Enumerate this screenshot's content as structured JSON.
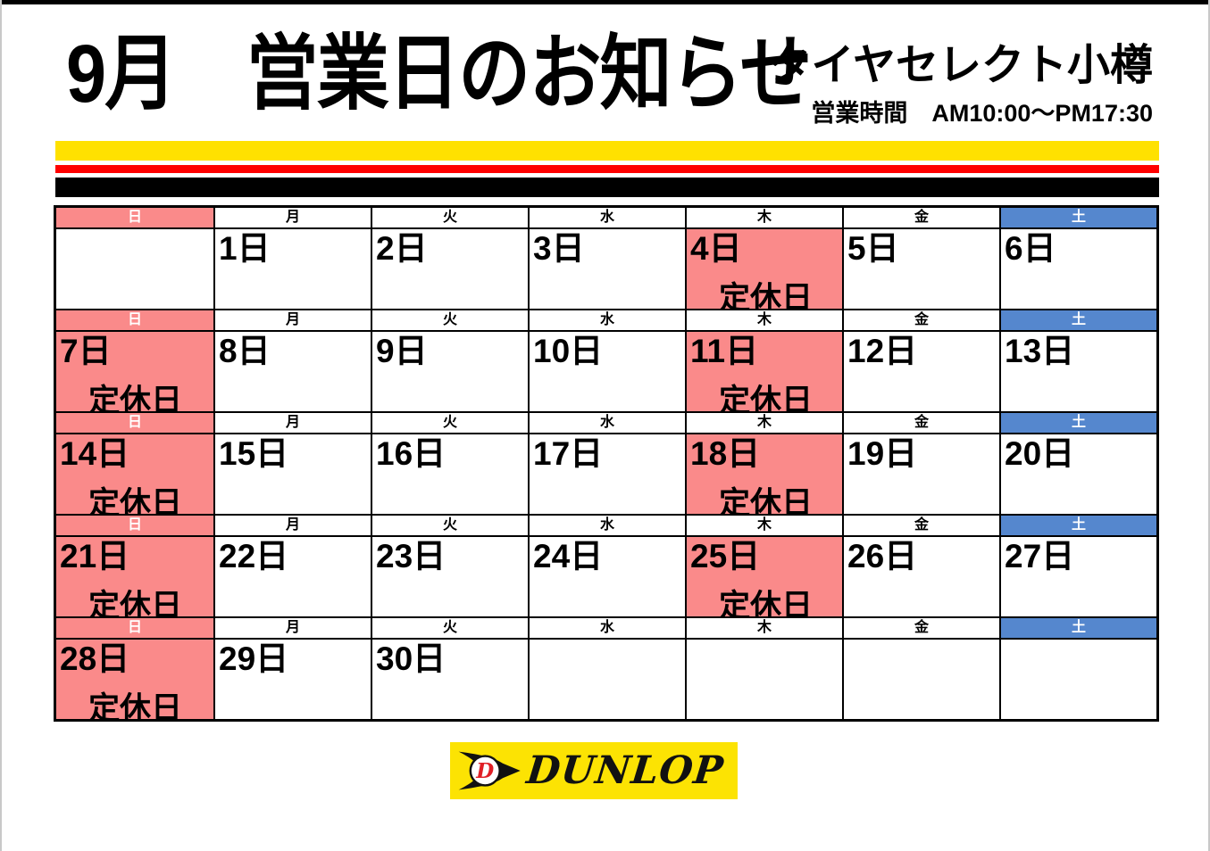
{
  "header": {
    "title": "9月　営業日のお知らせ",
    "shop_name": "タイヤセレクト小樽",
    "hours": "営業時間　AM10:00～PM17:30"
  },
  "stripes": {
    "yellow": "#FFE100",
    "red": "#FF0000",
    "black": "#000000"
  },
  "calendar": {
    "month": "9月",
    "closed_label": "定休日",
    "closed_bg": "#FA8A8A",
    "weekday_headers": [
      {
        "key": "sun",
        "label": "日",
        "bg": "#FA8A8A",
        "color": "#FFFFFF"
      },
      {
        "key": "mon",
        "label": "月",
        "bg": "#FFFFFF",
        "color": "#000000"
      },
      {
        "key": "tue",
        "label": "火",
        "bg": "#FFFFFF",
        "color": "#000000"
      },
      {
        "key": "wed",
        "label": "水",
        "bg": "#FFFFFF",
        "color": "#000000"
      },
      {
        "key": "thu",
        "label": "木",
        "bg": "#FFFFFF",
        "color": "#000000"
      },
      {
        "key": "fri",
        "label": "金",
        "bg": "#FFFFFF",
        "color": "#000000"
      },
      {
        "key": "sat",
        "label": "土",
        "bg": "#5587CE",
        "color": "#FFFFFF"
      }
    ],
    "weeks": [
      {
        "days": [
          {
            "date": "",
            "closed": false
          },
          {
            "date": "1日",
            "closed": false
          },
          {
            "date": "2日",
            "closed": false
          },
          {
            "date": "3日",
            "closed": false
          },
          {
            "date": "4日",
            "closed": true
          },
          {
            "date": "5日",
            "closed": false
          },
          {
            "date": "6日",
            "closed": false
          }
        ]
      },
      {
        "days": [
          {
            "date": "7日",
            "closed": true
          },
          {
            "date": "8日",
            "closed": false
          },
          {
            "date": "9日",
            "closed": false
          },
          {
            "date": "10日",
            "closed": false
          },
          {
            "date": "11日",
            "closed": true
          },
          {
            "date": "12日",
            "closed": false
          },
          {
            "date": "13日",
            "closed": false
          }
        ]
      },
      {
        "days": [
          {
            "date": "14日",
            "closed": true
          },
          {
            "date": "15日",
            "closed": false
          },
          {
            "date": "16日",
            "closed": false
          },
          {
            "date": "17日",
            "closed": false
          },
          {
            "date": "18日",
            "closed": true
          },
          {
            "date": "19日",
            "closed": false
          },
          {
            "date": "20日",
            "closed": false
          }
        ]
      },
      {
        "days": [
          {
            "date": "21日",
            "closed": true
          },
          {
            "date": "22日",
            "closed": false
          },
          {
            "date": "23日",
            "closed": false
          },
          {
            "date": "24日",
            "closed": false
          },
          {
            "date": "25日",
            "closed": true
          },
          {
            "date": "26日",
            "closed": false
          },
          {
            "date": "27日",
            "closed": false
          }
        ]
      },
      {
        "days": [
          {
            "date": "28日",
            "closed": true
          },
          {
            "date": "29日",
            "closed": false
          },
          {
            "date": "30日",
            "closed": false
          },
          {
            "date": "",
            "closed": false
          },
          {
            "date": "",
            "closed": false
          },
          {
            "date": "",
            "closed": false
          },
          {
            "date": "",
            "closed": false
          }
        ]
      }
    ]
  },
  "logo": {
    "brand": "DUNLOP",
    "bg": "#FCE303",
    "d_color": "#E01F26"
  }
}
